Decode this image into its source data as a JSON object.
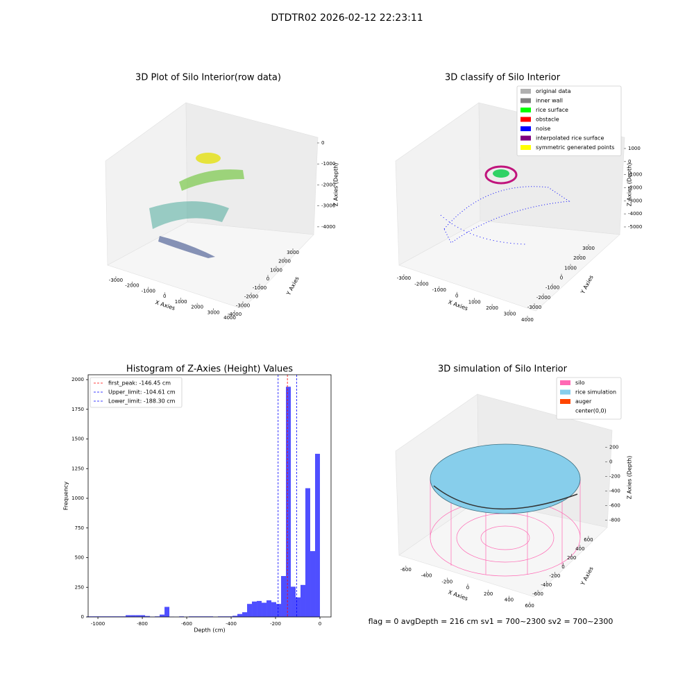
{
  "title": "DTDTR02 2026-02-12 22:23:11",
  "status": "flag = 0     avgDepth = 216 cm  sv1 = 700~2300  sv2 = 700~2300",
  "chart_data": [
    {
      "type": "scatter3d",
      "title": "3D Plot of Silo Interior(row data)",
      "xlabel": "X Axies",
      "ylabel": "Y Axies",
      "zlabel": "Z Axies (Depth)",
      "xlim": [
        -3400,
        4400
      ],
      "xticks": [
        -3000,
        -2000,
        -1000,
        0,
        1000,
        2000,
        3000,
        4000
      ],
      "ylim": [
        -4300,
        3400
      ],
      "yticks": [
        -4000,
        -3000,
        -2000,
        -1000,
        0,
        1000,
        2000,
        3000
      ],
      "zlim": [
        -4600,
        300
      ],
      "zticks": [
        0,
        -1000,
        -2000,
        -3000,
        -4000
      ]
    },
    {
      "type": "scatter3d",
      "title": "3D classify of Silo Interior",
      "xlabel": "X Axies",
      "ylabel": "Y Axies",
      "zlabel": "Z Axies (Depth)",
      "xlim": [
        -3400,
        4300
      ],
      "xticks": [
        -3000,
        -2000,
        -1000,
        0,
        1000,
        2000,
        3000,
        4000
      ],
      "ylim": [
        -3500,
        3500
      ],
      "yticks": [
        -3000,
        -2000,
        -1000,
        0,
        1000,
        2000,
        3000
      ],
      "zlim": [
        -5500,
        1200
      ],
      "zticks": [
        1000,
        0,
        -1000,
        -2000,
        -3000,
        -4000,
        -5000
      ],
      "legend": [
        {
          "name": "original data",
          "color": "#b0b0b0"
        },
        {
          "name": "inner wall",
          "color": "#808080"
        },
        {
          "name": "rice surface",
          "color": "#00ff00"
        },
        {
          "name": "obstacle",
          "color": "#ff0000"
        },
        {
          "name": "noise",
          "color": "#0000ff"
        },
        {
          "name": "interpolated rice surface",
          "color": "#800080"
        },
        {
          "name": "symmetric generated points",
          "color": "#ffff00"
        }
      ]
    },
    {
      "type": "histogram",
      "title": "Histogram of Z-Axies (Height) Values",
      "xlabel": "Depth (cm)",
      "ylabel": "Frequency",
      "color": "#4f4fff",
      "bins": [
        -1050,
        -1028.125,
        -1006.25,
        -984.375,
        -962.5,
        -940.625,
        -918.75,
        -896.875,
        -875,
        -853.125,
        -831.25,
        -809.375,
        -787.5,
        -765.625,
        -743.75,
        -721.875,
        -700,
        -678.125,
        -656.25,
        -634.375,
        -612.5,
        -590.625,
        -568.75,
        -546.875,
        -525,
        -503.125,
        -481.25,
        -459.375,
        -437.5,
        -415.625,
        -393.75,
        -371.875,
        -350,
        -328.125,
        -306.25,
        -284.375,
        -262.5,
        -240.625,
        -218.75,
        -196.875,
        -175,
        -153.125,
        -131.25,
        -109.375,
        -87.5,
        -65.625,
        -43.75,
        -21.875,
        0
      ],
      "values": [
        5,
        5,
        5,
        5,
        5,
        5,
        5,
        5,
        15,
        15,
        15,
        15,
        8,
        3,
        5,
        20,
        85,
        3,
        2,
        5,
        3,
        5,
        5,
        5,
        5,
        5,
        3,
        5,
        5,
        5,
        10,
        25,
        40,
        110,
        130,
        135,
        120,
        140,
        125,
        110,
        345,
        1940,
        255,
        165,
        270,
        1085,
        555,
        1375
      ],
      "xlim": [
        -1044,
        50
      ],
      "xticks": [
        -1000,
        -800,
        -600,
        -400,
        -200,
        0
      ],
      "ylim": [
        0,
        2041
      ],
      "yticks": [
        0,
        250,
        500,
        750,
        1000,
        1250,
        1500,
        1750,
        2000
      ],
      "vlines": [
        {
          "label": "first_peak: -146.45 cm",
          "value": -146.45,
          "color": "#ff0000"
        },
        {
          "label": "Upper_limit: -104.61 cm",
          "value": -104.61,
          "color": "#0000ff"
        },
        {
          "label": "Lower_limit: -188.30 cm",
          "value": -188.3,
          "color": "#0000ff"
        }
      ]
    },
    {
      "type": "surface3d",
      "title": "3D simulation of Silo Interior",
      "xlabel": "X Axies",
      "ylabel": "Y Axies",
      "zlabel": "Z Axies (Depth)",
      "xlim": [
        -700,
        700
      ],
      "xticks": [
        -600,
        -400,
        -200,
        0,
        200,
        400,
        600
      ],
      "ylim": [
        -700,
        700
      ],
      "yticks": [
        -600,
        -400,
        -200,
        0,
        200,
        400,
        600
      ],
      "zlim": [
        -900,
        350
      ],
      "zticks": [
        200,
        0,
        -200,
        -400,
        -600,
        -800
      ],
      "legend": [
        {
          "name": "silo",
          "color": "#ff69b4"
        },
        {
          "name": "rice simulation",
          "color": "#87ceeb"
        },
        {
          "name": "auger",
          "color": "#ff4500"
        },
        {
          "name": "center(0,0)",
          "color": "#ffffff"
        }
      ]
    }
  ]
}
